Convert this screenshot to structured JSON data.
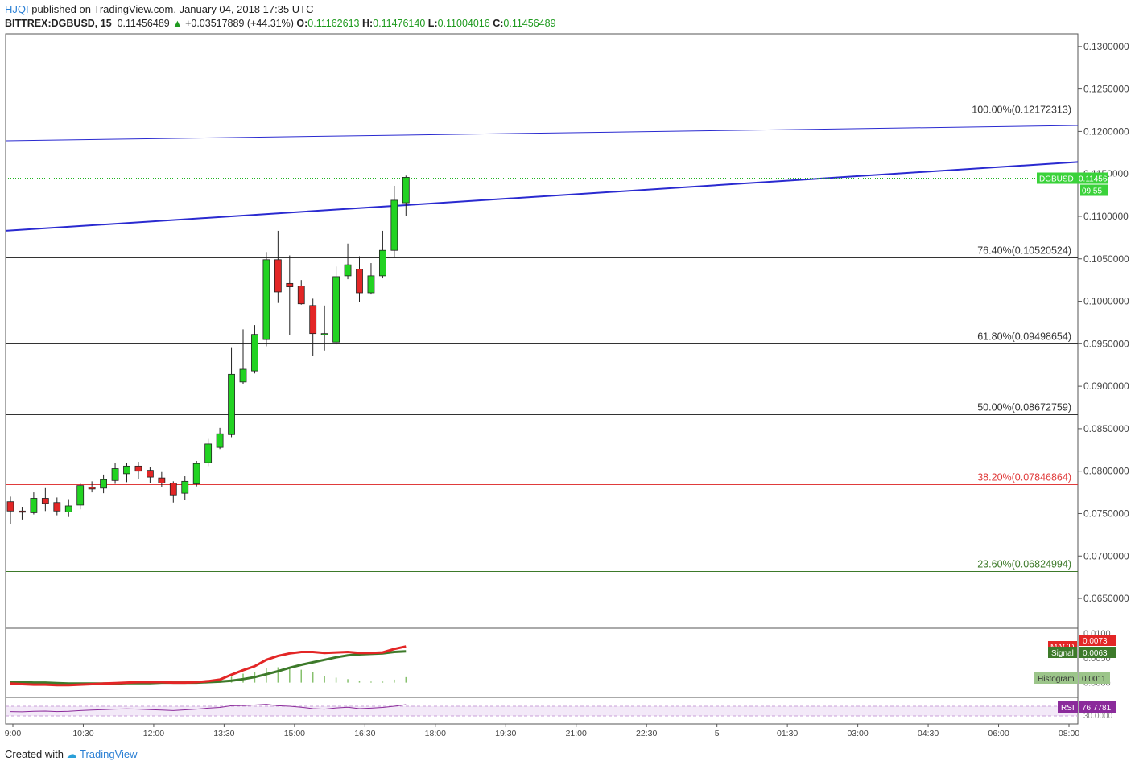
{
  "header": {
    "user": "HJQI",
    "published": "published on TradingView.com, January 04, 2018 17:35 UTC",
    "symbol": "BITTREX:DGBUSD, 15",
    "last": "0.11456489",
    "change": "+0.03517889 (+44.31%)",
    "o_label": "O:",
    "o": "0.11162613",
    "h_label": "H:",
    "h": "0.11476140",
    "l_label": "L:",
    "l": "0.11004016",
    "c_label": "C:",
    "c": "0.11456489"
  },
  "footer": {
    "created": "Created with",
    "brand": "TradingView"
  },
  "colors": {
    "up": "#22d322",
    "down": "#e32626",
    "trend": "#2a2ad0",
    "fib": "#333333",
    "fib_red": "#e03b3b",
    "fib_green": "#3d7a2a"
  },
  "chart_data": {
    "type": "candlestick",
    "y_range": [
      0.0615,
      0.1315
    ],
    "price_ticks": [
      "0.1300000",
      "0.1250000",
      "0.1200000",
      "0.1150000",
      "0.1100000",
      "0.1050000",
      "0.1000000",
      "0.0950000",
      "0.0900000",
      "0.0850000",
      "0.0800000",
      "0.0750000",
      "0.0700000",
      "0.0650000"
    ],
    "time_labels": [
      "9:00",
      "10:30",
      "12:00",
      "13:30",
      "15:00",
      "16:30",
      "18:00",
      "19:30",
      "21:00",
      "22:30",
      "5",
      "01:30",
      "03:00",
      "04:30",
      "06:00",
      "08:00"
    ],
    "candles": [
      {
        "o": 0.0764,
        "h": 0.077,
        "l": 0.0738,
        "c": 0.0753
      },
      {
        "o": 0.0753,
        "h": 0.0758,
        "l": 0.0743,
        "c": 0.0752
      },
      {
        "o": 0.0751,
        "h": 0.0775,
        "l": 0.0749,
        "c": 0.0768
      },
      {
        "o": 0.0768,
        "h": 0.078,
        "l": 0.0753,
        "c": 0.0762
      },
      {
        "o": 0.0763,
        "h": 0.0769,
        "l": 0.0748,
        "c": 0.0753
      },
      {
        "o": 0.0752,
        "h": 0.0767,
        "l": 0.0746,
        "c": 0.0759
      },
      {
        "o": 0.076,
        "h": 0.0786,
        "l": 0.0755,
        "c": 0.0783
      },
      {
        "o": 0.0781,
        "h": 0.0788,
        "l": 0.0775,
        "c": 0.0779
      },
      {
        "o": 0.078,
        "h": 0.0796,
        "l": 0.0774,
        "c": 0.079
      },
      {
        "o": 0.0789,
        "h": 0.081,
        "l": 0.0785,
        "c": 0.0803
      },
      {
        "o": 0.0797,
        "h": 0.081,
        "l": 0.0787,
        "c": 0.0806
      },
      {
        "o": 0.0806,
        "h": 0.0811,
        "l": 0.0791,
        "c": 0.08
      },
      {
        "o": 0.0801,
        "h": 0.0805,
        "l": 0.0786,
        "c": 0.0793
      },
      {
        "o": 0.0792,
        "h": 0.0799,
        "l": 0.0781,
        "c": 0.0786
      },
      {
        "o": 0.0786,
        "h": 0.0788,
        "l": 0.0763,
        "c": 0.0772
      },
      {
        "o": 0.0774,
        "h": 0.0794,
        "l": 0.0766,
        "c": 0.0788
      },
      {
        "o": 0.0785,
        "h": 0.0812,
        "l": 0.0782,
        "c": 0.0809
      },
      {
        "o": 0.081,
        "h": 0.0838,
        "l": 0.0806,
        "c": 0.0832
      },
      {
        "o": 0.0828,
        "h": 0.0851,
        "l": 0.0826,
        "c": 0.0844
      },
      {
        "o": 0.0843,
        "h": 0.0945,
        "l": 0.084,
        "c": 0.0914
      },
      {
        "o": 0.0905,
        "h": 0.0967,
        "l": 0.0903,
        "c": 0.092
      },
      {
        "o": 0.0918,
        "h": 0.0972,
        "l": 0.0915,
        "c": 0.0961
      },
      {
        "o": 0.0955,
        "h": 0.1058,
        "l": 0.0947,
        "c": 0.1049
      },
      {
        "o": 0.1049,
        "h": 0.1083,
        "l": 0.0998,
        "c": 0.1011
      },
      {
        "o": 0.1021,
        "h": 0.1054,
        "l": 0.096,
        "c": 0.1017
      },
      {
        "o": 0.1018,
        "h": 0.1025,
        "l": 0.0996,
        "c": 0.0997
      },
      {
        "o": 0.0995,
        "h": 0.1003,
        "l": 0.0936,
        "c": 0.0962
      },
      {
        "o": 0.0962,
        "h": 0.0995,
        "l": 0.0942,
        "c": 0.0962
      },
      {
        "o": 0.0952,
        "h": 0.1041,
        "l": 0.0949,
        "c": 0.1029
      },
      {
        "o": 0.103,
        "h": 0.1068,
        "l": 0.1026,
        "c": 0.1043
      },
      {
        "o": 0.1038,
        "h": 0.1053,
        "l": 0.0999,
        "c": 0.101
      },
      {
        "o": 0.101,
        "h": 0.1045,
        "l": 0.1008,
        "c": 0.103
      },
      {
        "o": 0.103,
        "h": 0.1083,
        "l": 0.1027,
        "c": 0.106
      },
      {
        "o": 0.106,
        "h": 0.1136,
        "l": 0.1051,
        "c": 0.1119
      },
      {
        "o": 0.1116,
        "h": 0.1148,
        "l": 0.11,
        "c": 0.1146
      }
    ],
    "fib_levels": [
      {
        "label": "100.00%(0.12172313)",
        "value": 0.12172313,
        "color": "#333333"
      },
      {
        "label": "76.40%(0.10520524)",
        "value": 0.10520524,
        "color": "#333333"
      },
      {
        "label": "61.80%(0.09498654)",
        "value": 0.09498654,
        "color": "#333333"
      },
      {
        "label": "50.00%(0.08672759)",
        "value": 0.08672759,
        "color": "#333333"
      },
      {
        "label": "38.20%(0.07846864)",
        "value": 0.07846864,
        "color": "#e03b3b"
      },
      {
        "label": "23.60%(0.06824994)",
        "value": 0.06824994,
        "color": "#3d7a2a"
      }
    ],
    "trendlines": [
      {
        "p1": [
          0,
          0.1189
        ],
        "p2": [
          1,
          0.1207
        ],
        "width": 1
      },
      {
        "p1": [
          0,
          0.1083
        ],
        "p2": [
          1,
          0.1164
        ],
        "width": 2
      }
    ],
    "last_price": {
      "label": "DGBUSD",
      "value": "0.11456489",
      "countdown": "09:55",
      "level": 0.11456489
    },
    "macd": {
      "label": "MACD",
      "value": "0.0073",
      "signal_label": "Signal",
      "signal_value": "0.0063",
      "hist_label": "Histogram",
      "hist_value": "0.0011",
      "axis_labels": [
        "0.0100",
        "0.0050",
        "0.0000"
      ],
      "macd_line": [
        -0.0002,
        -0.0003,
        -0.0004,
        -0.0004,
        -0.0005,
        -0.0005,
        -0.0004,
        -0.0003,
        -0.0002,
        -0.0001,
        0.0,
        0.0001,
        0.0001,
        0.0001,
        0.0,
        0.0,
        0.0001,
        0.0003,
        0.0006,
        0.0016,
        0.0025,
        0.0033,
        0.0046,
        0.0054,
        0.0059,
        0.0062,
        0.0062,
        0.006,
        0.0061,
        0.0062,
        0.006,
        0.006,
        0.0061,
        0.0068,
        0.0073
      ],
      "signal_line": [
        0.0001,
        0.0001,
        0.0,
        0.0,
        -0.0001,
        -0.0002,
        -0.0002,
        -0.0002,
        -0.0002,
        -0.0002,
        -0.0001,
        -0.0001,
        -0.0001,
        0.0,
        0.0,
        0.0,
        0.0,
        0.0001,
        0.0002,
        0.0004,
        0.0007,
        0.0011,
        0.0017,
        0.0023,
        0.003,
        0.0036,
        0.0041,
        0.0046,
        0.0051,
        0.0055,
        0.0057,
        0.0058,
        0.0059,
        0.0062,
        0.0063
      ],
      "histogram": [
        -0.0003,
        -0.0004,
        -0.0004,
        -0.0004,
        -0.0004,
        -0.0003,
        -0.0002,
        -0.0001,
        0.0,
        0.0001,
        0.0001,
        0.0002,
        0.0002,
        0.0001,
        0.0,
        0.0,
        0.0001,
        0.0002,
        0.0004,
        0.0012,
        0.0018,
        0.0022,
        0.0029,
        0.0031,
        0.0029,
        0.0026,
        0.0021,
        0.0014,
        0.001,
        0.0007,
        0.0003,
        0.0002,
        0.0002,
        0.0006,
        0.0011
      ]
    },
    "rsi": {
      "label": "RSI",
      "value": "76.7781",
      "axis_label": "30.0000",
      "values": [
        48,
        47,
        49,
        50,
        48,
        49,
        52,
        54,
        56,
        58,
        59,
        58,
        56,
        54,
        52,
        55,
        58,
        62,
        65,
        72,
        73,
        75,
        78,
        72,
        70,
        66,
        60,
        58,
        63,
        66,
        60,
        62,
        65,
        70,
        76.8
      ]
    }
  }
}
